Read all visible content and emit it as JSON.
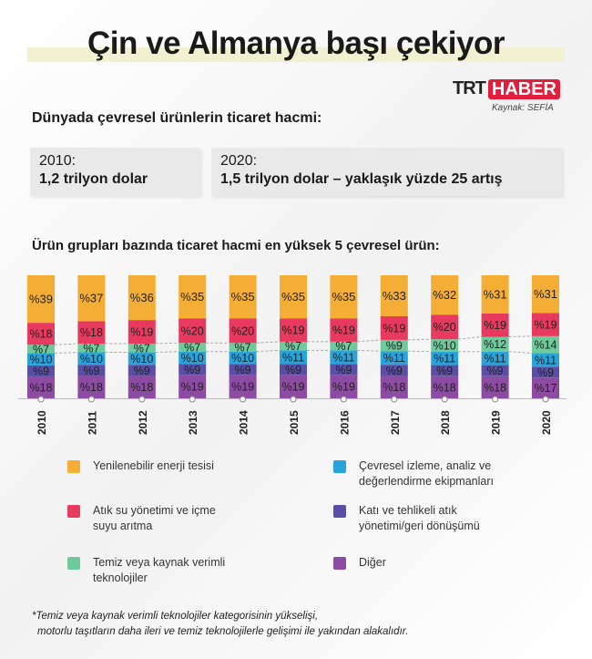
{
  "title": "Çin ve Almanya başı çekiyor",
  "logo": {
    "trt": "TRT",
    "haber": "HABER"
  },
  "source": "Kaynak: SEFİA",
  "subhead": "Dünyada çevresel ürünlerin ticaret hacmi:",
  "boxes": [
    {
      "year": "2010:",
      "value": "1,2 trilyon dolar"
    },
    {
      "year": "2020:",
      "value": "1,5 trilyon dolar – yaklaşık yüzde 25 artış"
    }
  ],
  "chart_data": {
    "type": "bar",
    "stacked": true,
    "title": "Ürün grupları bazında ticaret hacmi en yüksek 5 çevresel ürün:",
    "categories": [
      "2010",
      "2011",
      "2012",
      "2013",
      "2014",
      "2015",
      "2016",
      "2017",
      "2018",
      "2019",
      "2020"
    ],
    "series": [
      {
        "name": "Diğer",
        "color": "#8e4ba3",
        "values": [
          18,
          18,
          18,
          19,
          19,
          19,
          19,
          18,
          18,
          18,
          17
        ]
      },
      {
        "name": "Katı ve tehlikeli atık yönetimi/geri dönüşümü",
        "color": "#5b4ea6",
        "values": [
          9,
          9,
          9,
          9,
          9,
          9,
          9,
          9,
          9,
          9,
          9
        ]
      },
      {
        "name": "Çevresel izleme, analiz ve değerlendirme ekipmanları",
        "color": "#27a4dc",
        "values": [
          10,
          10,
          10,
          10,
          10,
          11,
          11,
          11,
          11,
          11,
          11
        ]
      },
      {
        "name": "Temiz veya kaynak verimli teknolojiler",
        "color": "#6ec99b",
        "values": [
          7,
          7,
          7,
          7,
          7,
          7,
          7,
          9,
          10,
          12,
          14
        ]
      },
      {
        "name": "Atık su yönetimi ve içme suyu arıtma",
        "color": "#e8395f",
        "values": [
          18,
          18,
          19,
          20,
          20,
          19,
          19,
          19,
          20,
          19,
          19
        ]
      },
      {
        "name": "Yenilenebilir enerji tesisi",
        "color": "#f5ae35",
        "values": [
          39,
          37,
          36,
          35,
          35,
          35,
          35,
          33,
          32,
          31,
          31
        ]
      }
    ],
    "label_prefix": "%"
  },
  "legend": [
    {
      "label": "Yenilenebilir enerji tesisi",
      "color": "#f5ae35"
    },
    {
      "label": "Çevresel izleme, analiz ve değerlendirme ekipmanları",
      "color": "#27a4dc"
    },
    {
      "label": "Atık su yönetimi ve içme suyu arıtma",
      "color": "#e8395f"
    },
    {
      "label": "Katı ve tehlikeli atık yönetimi/geri dönüşümü",
      "color": "#5b4ea6"
    },
    {
      "label": "Temiz veya kaynak verimli teknolojiler",
      "color": "#6ec99b"
    },
    {
      "label": "Diğer",
      "color": "#8e4ba3"
    }
  ],
  "note": [
    "*Temiz veya kaynak verimli teknolojiler kategorisinin yükselişi,",
    "motorlu taşıtların daha ileri ve temiz teknolojilerle gelişimi ile yakından alakalıdır."
  ]
}
